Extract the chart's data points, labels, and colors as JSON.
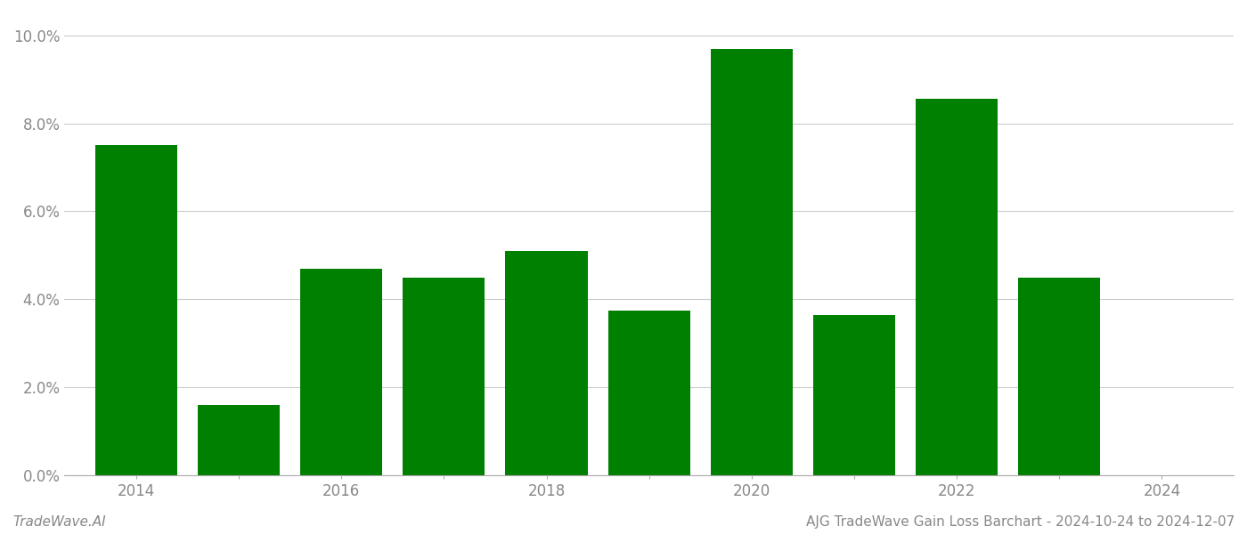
{
  "years": [
    2014,
    2015,
    2016,
    2017,
    2018,
    2019,
    2020,
    2021,
    2022,
    2023
  ],
  "values": [
    0.075,
    0.016,
    0.047,
    0.045,
    0.051,
    0.0375,
    0.097,
    0.0365,
    0.0855,
    0.045
  ],
  "bar_color": "#008000",
  "ylim": [
    0,
    0.105
  ],
  "yticks": [
    0.0,
    0.02,
    0.04,
    0.06,
    0.08,
    0.1
  ],
  "xlabel": "",
  "ylabel": "",
  "title": "",
  "footer_left": "TradeWave.AI",
  "footer_right": "AJG TradeWave Gain Loss Barchart - 2024-10-24 to 2024-12-07",
  "background_color": "#ffffff",
  "grid_color": "#cccccc",
  "bar_width": 0.8,
  "spine_color": "#aaaaaa",
  "tick_label_color": "#888888",
  "footer_font_size": 11,
  "tick_font_size": 12,
  "xlim_left": 2013.3,
  "xlim_right": 2024.7
}
